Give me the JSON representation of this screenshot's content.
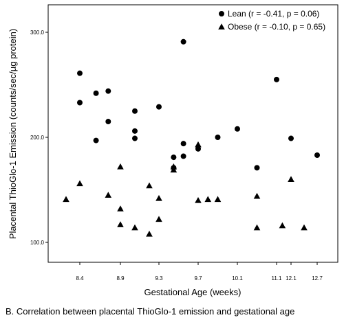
{
  "caption": "B. Correlation between placental ThioGlo-1 emission and gestational age",
  "chart_data": {
    "type": "scatter",
    "xlabel": "Gestational Age (weeks)",
    "ylabel": "Placental ThioGlo-1 Emission (counts/sec/µg protein)",
    "x_categories": [
      "8.4",
      "8.9",
      "9.3",
      "9.7",
      "10.1",
      "11.1",
      "12.1",
      "12.7"
    ],
    "y_ticks": [
      "100.0",
      "200.0",
      "300.0"
    ],
    "ylim": [
      75,
      310
    ],
    "legend_position": "top-right",
    "grid": false,
    "series": [
      {
        "name": "Lean (r = -0.41, p = 0.06)",
        "marker": "circle",
        "color": "#000000",
        "points": [
          {
            "x": 8.4,
            "y": 261
          },
          {
            "x": 8.4,
            "y": 233
          },
          {
            "x": 8.6,
            "y": 242
          },
          {
            "x": 8.6,
            "y": 197
          },
          {
            "x": 8.75,
            "y": 244
          },
          {
            "x": 8.75,
            "y": 215
          },
          {
            "x": 9.05,
            "y": 225
          },
          {
            "x": 9.05,
            "y": 206
          },
          {
            "x": 9.05,
            "y": 199
          },
          {
            "x": 9.3,
            "y": 229
          },
          {
            "x": 9.45,
            "y": 181
          },
          {
            "x": 9.45,
            "y": 171
          },
          {
            "x": 9.55,
            "y": 291
          },
          {
            "x": 9.55,
            "y": 194
          },
          {
            "x": 9.55,
            "y": 182
          },
          {
            "x": 9.7,
            "y": 189
          },
          {
            "x": 9.9,
            "y": 200
          },
          {
            "x": 10.1,
            "y": 208
          },
          {
            "x": 10.6,
            "y": 171
          },
          {
            "x": 11.1,
            "y": 255
          },
          {
            "x": 12.1,
            "y": 199
          },
          {
            "x": 12.7,
            "y": 183
          }
        ]
      },
      {
        "name": "Obese (r = -0.10, p = 0.65)",
        "marker": "triangle",
        "color": "#000000",
        "points": [
          {
            "x": 8.2,
            "y": 141
          },
          {
            "x": 8.4,
            "y": 156
          },
          {
            "x": 8.75,
            "y": 145
          },
          {
            "x": 8.9,
            "y": 172
          },
          {
            "x": 8.9,
            "y": 132
          },
          {
            "x": 8.9,
            "y": 117
          },
          {
            "x": 9.05,
            "y": 114
          },
          {
            "x": 9.2,
            "y": 154
          },
          {
            "x": 9.2,
            "y": 108
          },
          {
            "x": 9.3,
            "y": 142
          },
          {
            "x": 9.3,
            "y": 122
          },
          {
            "x": 9.45,
            "y": 172
          },
          {
            "x": 9.45,
            "y": 169
          },
          {
            "x": 9.7,
            "y": 193
          },
          {
            "x": 9.7,
            "y": 140
          },
          {
            "x": 9.8,
            "y": 141
          },
          {
            "x": 9.9,
            "y": 141
          },
          {
            "x": 10.6,
            "y": 144
          },
          {
            "x": 10.6,
            "y": 114
          },
          {
            "x": 11.5,
            "y": 116
          },
          {
            "x": 12.1,
            "y": 160
          },
          {
            "x": 12.4,
            "y": 114
          }
        ]
      }
    ]
  }
}
